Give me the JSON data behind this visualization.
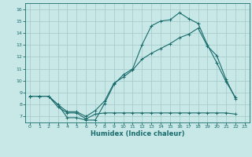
{
  "xlabel": "Humidex (Indice chaleur)",
  "bg_color": "#c8e8e8",
  "grid_color": "#a8cccc",
  "line_color": "#1a6b6b",
  "xlim": [
    -0.5,
    23.5
  ],
  "ylim": [
    6.5,
    16.5
  ],
  "xticks": [
    0,
    1,
    2,
    3,
    4,
    5,
    6,
    7,
    8,
    9,
    10,
    11,
    12,
    13,
    14,
    15,
    16,
    17,
    18,
    19,
    20,
    21,
    22,
    23
  ],
  "yticks": [
    7,
    8,
    9,
    10,
    11,
    12,
    13,
    14,
    15,
    16
  ],
  "line1_x": [
    0,
    1,
    2,
    3,
    4,
    5,
    6,
    7,
    8,
    9,
    10,
    11,
    12,
    13,
    14,
    15,
    16,
    17,
    18,
    19,
    20,
    21,
    22
  ],
  "line1_y": [
    8.7,
    8.7,
    8.7,
    8.0,
    6.9,
    6.9,
    6.7,
    6.7,
    8.1,
    9.7,
    10.5,
    11.0,
    13.0,
    14.6,
    15.0,
    15.1,
    15.7,
    15.2,
    14.8,
    13.0,
    11.5,
    9.9,
    8.6
  ],
  "line2_x": [
    0,
    1,
    2,
    3,
    4,
    5,
    6,
    7,
    8,
    9,
    10,
    11,
    12,
    13,
    14,
    15,
    16,
    17,
    18,
    19,
    20,
    21,
    22
  ],
  "line2_y": [
    8.7,
    8.7,
    8.7,
    8.0,
    7.4,
    7.4,
    7.0,
    7.5,
    8.3,
    9.8,
    10.3,
    10.9,
    11.8,
    12.3,
    12.7,
    13.1,
    13.6,
    13.9,
    14.4,
    12.9,
    12.1,
    10.1,
    8.5
  ],
  "line3_x": [
    0,
    1,
    2,
    3,
    4,
    5,
    6,
    7,
    8,
    9,
    10,
    11,
    12,
    13,
    14,
    15,
    16,
    17,
    18,
    19,
    20,
    21,
    22
  ],
  "line3_y": [
    8.7,
    8.7,
    8.7,
    7.8,
    7.3,
    7.3,
    6.8,
    7.2,
    7.3,
    7.3,
    7.3,
    7.3,
    7.3,
    7.3,
    7.3,
    7.3,
    7.3,
    7.3,
    7.3,
    7.3,
    7.3,
    7.3,
    7.2
  ]
}
